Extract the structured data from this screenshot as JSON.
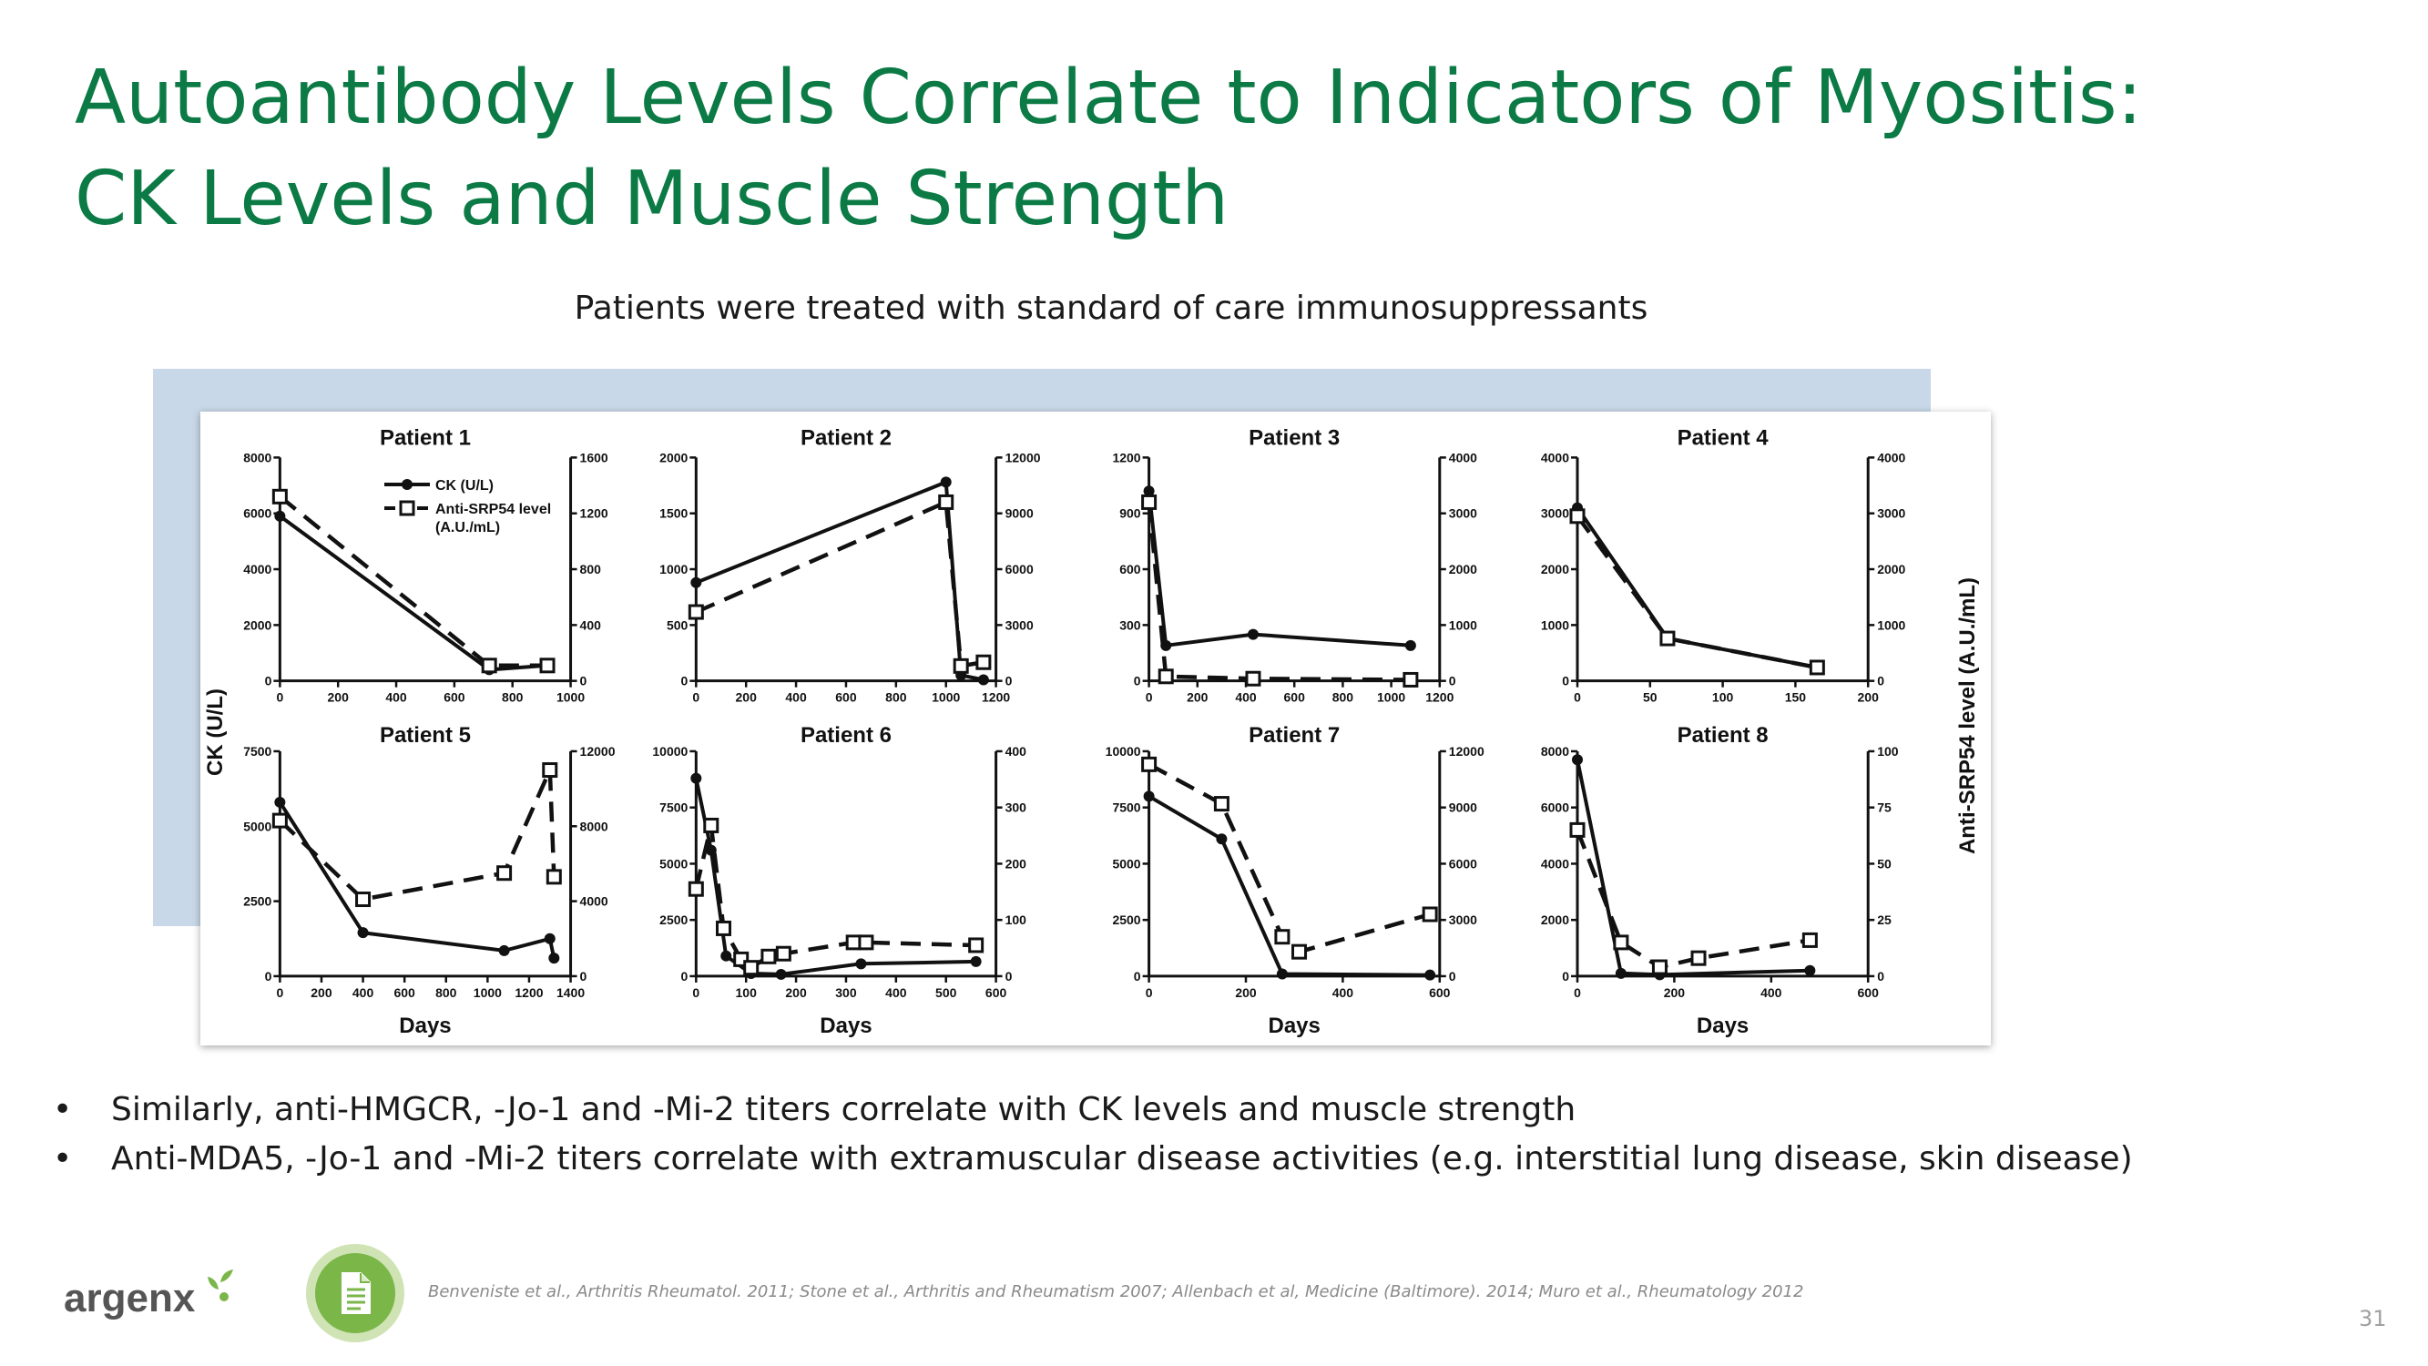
{
  "slide": {
    "title_line1": "Autoantibody Levels Correlate to Indicators of Myositis:",
    "title_line2": "CK Levels and Muscle Strength",
    "subtitle": "Patients were treated with standard of care immunosuppressants",
    "bullets": [
      "Similarly, anti-HMGCR, -Jo-1 and -Mi-2 titers correlate with CK levels and muscle strength",
      "Anti-MDA5, -Jo-1 and -Mi-2 titers correlate with extramuscular disease activities (e.g. interstitial lung disease, skin disease)"
    ],
    "bullet_glyph": "•",
    "logo_text": "argenx",
    "citation": "Benveniste et al., Arthritis Rheumatol. 2011; Stone et al., Arthritis and Rheumatism 2007; Allenbach et al, Medicine (Baltimore). 2014; Muro et al., Rheumatology 2012",
    "page_number": "31",
    "colors": {
      "title": "#0b7a45",
      "logo_green": "#7ab648",
      "blue_box": "#c8d8e8"
    }
  },
  "figure": {
    "y_left_label": "CK (U/L)",
    "y_right_label": "Anti-SRP54 level (A.U./mL)",
    "x_label": "Days",
    "legend": {
      "ck": "CK (U/L)",
      "srp_line1": "Anti-SRP54 level",
      "srp_line2": "(A.U./mL)"
    }
  },
  "chart_data": [
    {
      "type": "line",
      "title": "Patient 1",
      "xlim": [
        0,
        1000
      ],
      "xticks": [
        0,
        200,
        400,
        600,
        800,
        1000
      ],
      "ylim_left": [
        0,
        8000
      ],
      "yticks_left": [
        0,
        2000,
        4000,
        6000,
        8000
      ],
      "ylim_right": [
        0,
        1600
      ],
      "yticks_right": [
        0,
        400,
        800,
        1200,
        1600
      ],
      "series": [
        {
          "name": "CK (U/L)",
          "axis": "left",
          "points": [
            [
              0,
              5900
            ],
            [
              720,
              400
            ],
            [
              920,
              550
            ]
          ]
        },
        {
          "name": "Anti-SRP54 level (A.U./mL)",
          "axis": "right",
          "points": [
            [
              0,
              1320
            ],
            [
              720,
              110
            ],
            [
              920,
              110
            ]
          ]
        }
      ]
    },
    {
      "type": "line",
      "title": "Patient 2",
      "xlim": [
        0,
        1200
      ],
      "xticks": [
        0,
        200,
        400,
        600,
        800,
        1000,
        1200
      ],
      "ylim_left": [
        0,
        2000
      ],
      "yticks_left": [
        0,
        500,
        1000,
        1500,
        2000
      ],
      "ylim_right": [
        0,
        12000
      ],
      "yticks_right": [
        0,
        3000,
        6000,
        9000,
        12000
      ],
      "series": [
        {
          "name": "CK (U/L)",
          "axis": "left",
          "points": [
            [
              0,
              880
            ],
            [
              1000,
              1780
            ],
            [
              1060,
              50
            ],
            [
              1150,
              10
            ]
          ]
        },
        {
          "name": "Anti-SRP54 level (A.U./mL)",
          "axis": "right",
          "points": [
            [
              0,
              3700
            ],
            [
              1000,
              9600
            ],
            [
              1060,
              800
            ],
            [
              1150,
              1000
            ]
          ]
        }
      ]
    },
    {
      "type": "line",
      "title": "Patient 3",
      "xlim": [
        0,
        1200
      ],
      "xticks": [
        0,
        200,
        400,
        600,
        800,
        1000,
        1200
      ],
      "ylim_left": [
        0,
        1200
      ],
      "yticks_left": [
        0,
        300,
        600,
        900,
        1200
      ],
      "ylim_right": [
        0,
        4000
      ],
      "yticks_right": [
        0,
        1000,
        2000,
        3000,
        4000
      ],
      "series": [
        {
          "name": "CK (U/L)",
          "axis": "left",
          "points": [
            [
              0,
              1020
            ],
            [
              70,
              190
            ],
            [
              430,
              250
            ],
            [
              1080,
              190
            ]
          ]
        },
        {
          "name": "Anti-SRP54 level (A.U./mL)",
          "axis": "right",
          "points": [
            [
              0,
              3200
            ],
            [
              70,
              80
            ],
            [
              430,
              40
            ],
            [
              1080,
              20
            ]
          ]
        }
      ]
    },
    {
      "type": "line",
      "title": "Patient 4",
      "xlim": [
        0,
        200
      ],
      "xticks": [
        0,
        50,
        100,
        150,
        200
      ],
      "ylim_left": [
        0,
        4000
      ],
      "yticks_left": [
        0,
        1000,
        2000,
        3000,
        4000
      ],
      "ylim_right": [
        0,
        4000
      ],
      "yticks_right": [
        0,
        1000,
        2000,
        3000,
        4000
      ],
      "series": [
        {
          "name": "CK (U/L)",
          "axis": "left",
          "points": [
            [
              0,
              3100
            ],
            [
              62,
              760
            ],
            [
              165,
              240
            ]
          ]
        },
        {
          "name": "Anti-SRP54 level (A.U./mL)",
          "axis": "right",
          "points": [
            [
              0,
              2950
            ],
            [
              62,
              760
            ],
            [
              165,
              240
            ]
          ]
        }
      ]
    },
    {
      "type": "line",
      "title": "Patient 5",
      "xlim": [
        0,
        1400
      ],
      "xticks": [
        0,
        200,
        400,
        600,
        800,
        1000,
        1200,
        1400
      ],
      "ylim_left": [
        0,
        7500
      ],
      "yticks_left": [
        0,
        2500,
        5000,
        7500
      ],
      "ylim_right": [
        0,
        12000
      ],
      "yticks_right": [
        0,
        4000,
        8000,
        12000
      ],
      "series": [
        {
          "name": "CK (U/L)",
          "axis": "left",
          "points": [
            [
              0,
              5800
            ],
            [
              400,
              1450
            ],
            [
              1080,
              850
            ],
            [
              1300,
              1250
            ],
            [
              1320,
              600
            ]
          ]
        },
        {
          "name": "Anti-SRP54 level (A.U./mL)",
          "axis": "right",
          "points": [
            [
              0,
              8300
            ],
            [
              400,
              4100
            ],
            [
              1080,
              5500
            ],
            [
              1300,
              11000
            ],
            [
              1320,
              5300
            ]
          ]
        }
      ]
    },
    {
      "type": "line",
      "title": "Patient 6",
      "xlim": [
        0,
        600
      ],
      "xticks": [
        0,
        100,
        200,
        300,
        400,
        500,
        600
      ],
      "ylim_left": [
        0,
        10000
      ],
      "yticks_left": [
        0,
        2500,
        5000,
        7500,
        10000
      ],
      "ylim_right": [
        0,
        400
      ],
      "yticks_right": [
        0,
        100,
        200,
        300,
        400
      ],
      "series": [
        {
          "name": "CK (U/L)",
          "axis": "left",
          "points": [
            [
              0,
              8800
            ],
            [
              30,
              5600
            ],
            [
              60,
              900
            ],
            [
              110,
              120
            ],
            [
              170,
              80
            ],
            [
              330,
              550
            ],
            [
              560,
              650
            ]
          ]
        },
        {
          "name": "Anti-SRP54 level (A.U./mL)",
          "axis": "right",
          "points": [
            [
              0,
              155
            ],
            [
              30,
              268
            ],
            [
              55,
              85
            ],
            [
              90,
              30
            ],
            [
              110,
              15
            ],
            [
              145,
              35
            ],
            [
              175,
              40
            ],
            [
              315,
              60
            ],
            [
              340,
              60
            ],
            [
              560,
              55
            ]
          ]
        }
      ]
    },
    {
      "type": "line",
      "title": "Patient 7",
      "xlim": [
        0,
        600
      ],
      "xticks": [
        0,
        200,
        400,
        600
      ],
      "ylim_left": [
        0,
        10000
      ],
      "yticks_left": [
        0,
        2500,
        5000,
        7500,
        10000
      ],
      "ylim_right": [
        0,
        12000
      ],
      "yticks_right": [
        0,
        3000,
        6000,
        9000,
        12000
      ],
      "series": [
        {
          "name": "CK (U/L)",
          "axis": "left",
          "points": [
            [
              0,
              8000
            ],
            [
              150,
              6100
            ],
            [
              275,
              100
            ],
            [
              580,
              50
            ]
          ]
        },
        {
          "name": "Anti-SRP54 level (A.U./mL)",
          "axis": "right",
          "points": [
            [
              0,
              11300
            ],
            [
              150,
              9200
            ],
            [
              275,
              2100
            ],
            [
              310,
              1300
            ],
            [
              580,
              3300
            ]
          ]
        }
      ]
    },
    {
      "type": "line",
      "title": "Patient 8",
      "xlim": [
        0,
        600
      ],
      "xticks": [
        0,
        200,
        400,
        600
      ],
      "ylim_left": [
        0,
        8000
      ],
      "yticks_left": [
        0,
        2000,
        4000,
        6000,
        8000
      ],
      "ylim_right": [
        0,
        100
      ],
      "yticks_right": [
        0,
        25,
        50,
        75,
        100
      ],
      "series": [
        {
          "name": "CK (U/L)",
          "axis": "left",
          "points": [
            [
              0,
              7700
            ],
            [
              90,
              100
            ],
            [
              170,
              50
            ],
            [
              480,
              200
            ]
          ]
        },
        {
          "name": "Anti-SRP54 level (A.U./mL)",
          "axis": "right",
          "points": [
            [
              0,
              65
            ],
            [
              90,
              15
            ],
            [
              170,
              4
            ],
            [
              250,
              8
            ],
            [
              480,
              16
            ]
          ]
        }
      ]
    }
  ]
}
